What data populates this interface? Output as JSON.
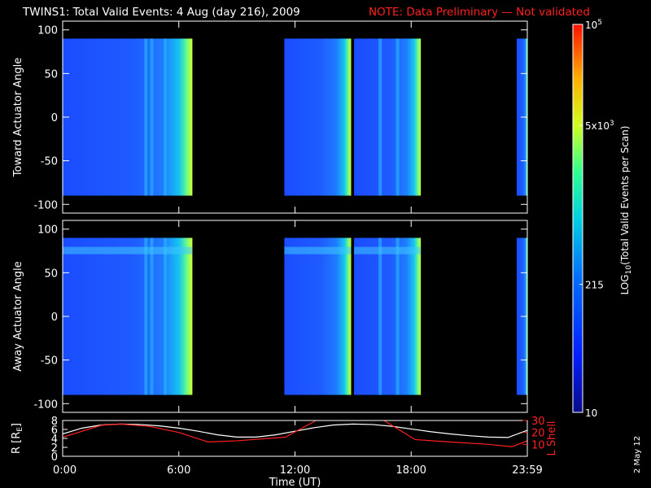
{
  "header": {
    "title": "TWINS1: Total Valid Events:  4 Aug (day 216), 2009",
    "note": "NOTE: Data Preliminary — Not validated",
    "note_color": "#ff2020"
  },
  "side_stamp": "2 May 12",
  "chart_data": [
    {
      "type": "heatmap",
      "panel": "toward",
      "ylabel": "Toward Actuator Angle",
      "yticks": [
        100,
        50,
        0,
        -50,
        -100
      ],
      "ylim": [
        -110,
        110
      ],
      "y_data_range": [
        -90,
        90
      ],
      "xlim": [
        0,
        24
      ],
      "data_segments_hours": [
        [
          0.0,
          6.7
        ],
        [
          11.45,
          14.9
        ],
        [
          15.05,
          18.5
        ],
        [
          23.45,
          24.0
        ]
      ],
      "gaps_hours": [
        [
          6.7,
          11.45
        ],
        [
          18.5,
          23.45
        ]
      ],
      "bright_stripes_hours": [
        4.3,
        4.6,
        5.3,
        16.4,
        17.3
      ],
      "high_rate_edges_hours": [
        6.5,
        18.3
      ],
      "colorscale_level_note": "mostly blue (low) increasing to yellow/green near right edge of each segment"
    },
    {
      "type": "heatmap",
      "panel": "away",
      "ylabel": "Away Actuator Angle",
      "yticks": [
        100,
        50,
        0,
        -50,
        -100
      ],
      "ylim": [
        -110,
        110
      ],
      "y_data_range": [
        -90,
        90
      ],
      "xlim": [
        0,
        24
      ],
      "data_segments_hours": [
        [
          0.0,
          6.7
        ],
        [
          11.45,
          14.9
        ],
        [
          15.05,
          18.5
        ],
        [
          23.45,
          24.0
        ]
      ],
      "gaps_hours": [
        [
          6.7,
          11.45
        ],
        [
          18.5,
          23.45
        ]
      ],
      "enhanced_band_angle": 75,
      "bright_stripes_hours": [
        4.3,
        4.6,
        5.3,
        16.4,
        17.3
      ],
      "high_rate_edges_hours": [
        6.5,
        18.3
      ]
    },
    {
      "type": "line",
      "panel": "orbit",
      "ylabel_left": "R [R",
      "ylabel_left_sub": "E",
      "ylabel_left_close": "]",
      "yticks_left": [
        0,
        2,
        4,
        6,
        8
      ],
      "ylim_left": [
        0,
        8
      ],
      "ylabel_right": "L Shell",
      "yticks_right": [
        10,
        20,
        30
      ],
      "ylim_right": [
        0,
        30
      ],
      "xlabel": "Time (UT)",
      "xticks": [
        "0:00",
        "6:00",
        "12:00",
        "18:00",
        "23:59"
      ],
      "xtick_hours": [
        0,
        6,
        12,
        18,
        24
      ],
      "xlim": [
        0,
        24
      ],
      "series": [
        {
          "color": "#ffffff",
          "x": [
            0,
            1,
            2,
            3,
            4,
            5,
            6,
            7,
            8,
            9,
            10,
            11,
            12,
            13,
            14,
            15,
            16,
            17,
            18,
            19,
            20,
            21,
            22,
            23,
            24
          ],
          "y": [
            5.0,
            6.3,
            7.0,
            7.2,
            7.1,
            6.8,
            6.3,
            5.6,
            4.8,
            4.3,
            4.3,
            4.8,
            5.6,
            6.4,
            7.0,
            7.2,
            7.1,
            6.7,
            6.1,
            5.5,
            5.0,
            4.6,
            4.3,
            4.2,
            5.8
          ]
        },
        {
          "color": "#ff2020",
          "axis": "right",
          "x": [
            0,
            2,
            3,
            4.5,
            6,
            7.5,
            9,
            11.5,
            13.2,
            15.2,
            16.5,
            18.2,
            20,
            22,
            23.2,
            24
          ],
          "y": [
            16,
            26,
            27,
            25,
            20,
            12,
            13,
            16,
            31,
            31,
            31,
            14,
            12,
            10,
            8,
            13
          ]
        }
      ]
    }
  ],
  "colorbar": {
    "label_main": "LOG",
    "label_sub": "10",
    "label_rest": "(Total Valid  Events per Scan)",
    "ticks": [
      {
        "text": "10",
        "sup": "5",
        "frac": 1.0
      },
      {
        "text": "5x10",
        "sup": "3",
        "frac": 0.74
      },
      {
        "text": "215",
        "sup": "",
        "frac": 0.33
      },
      {
        "text": "10",
        "sup": "",
        "frac": 0.0
      }
    ]
  }
}
